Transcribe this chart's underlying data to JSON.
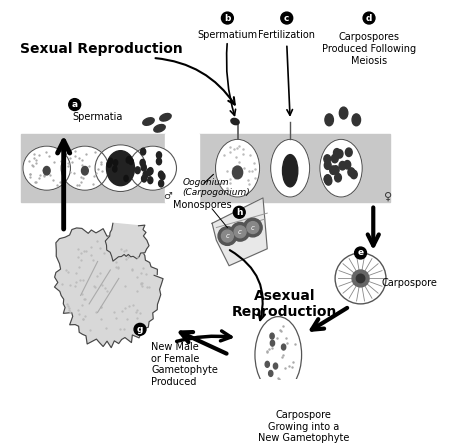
{
  "bg_color": "#ffffff",
  "fig_width": 4.52,
  "fig_height": 4.43,
  "dpi": 100,
  "light_gray": "#c8c8c8",
  "cell_gray": "#d8d8d8",
  "labels": {
    "sexual_reproduction": "Sexual Reproduction",
    "asexual_reproduction": "Asexual\nReproduction",
    "spermatia": "Spermatia",
    "spermatium": "Spermatium",
    "fertilization": "Fertilization",
    "carpospores": "Carpospores\nProduced Following\nMeiosis",
    "oogonium": "Oogonium\n(Carpogonium)",
    "monospores": "Monospores",
    "carpospore_e": "Carpospore",
    "carpospore_growing": "Carpospore\nGrowing into a\nNew Gametophyte",
    "new_gametophyte": "New Male\nor Female\nGametophyte\nProduced"
  }
}
